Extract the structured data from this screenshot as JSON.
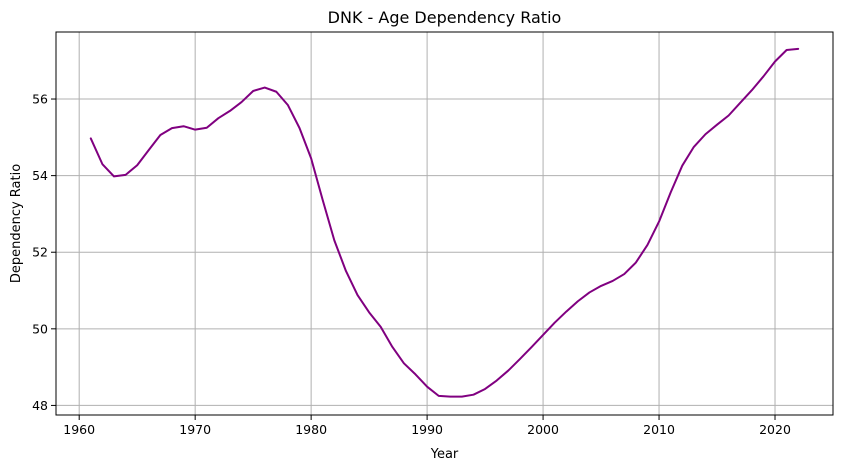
{
  "chart_data": {
    "type": "line",
    "title": "DNK - Age Dependency Ratio",
    "xlabel": "Year",
    "ylabel": "Dependency Ratio",
    "xlim": [
      1958,
      2025
    ],
    "ylim": [
      47.75,
      57.75
    ],
    "xticks": [
      1960,
      1970,
      1980,
      1990,
      2000,
      2010,
      2020
    ],
    "yticks": [
      48,
      50,
      52,
      54,
      56
    ],
    "grid": true,
    "line_color": "#800080",
    "series": [
      {
        "x": [
          1961,
          1962,
          1963,
          1964,
          1965,
          1966,
          1967,
          1968,
          1969,
          1970,
          1971,
          1972,
          1973,
          1974,
          1975,
          1976,
          1977,
          1978,
          1979,
          1980,
          1981,
          1982,
          1983,
          1984,
          1985,
          1986,
          1987,
          1988,
          1989,
          1990,
          1991,
          1992,
          1993,
          1994,
          1995,
          1996,
          1997,
          1998,
          1999,
          2000,
          2001,
          2002,
          2003,
          2004,
          2005,
          2006,
          2007,
          2008,
          2009,
          2010,
          2011,
          2012,
          2013,
          2014,
          2015,
          2016,
          2017,
          2018,
          2019,
          2020,
          2021,
          2022
        ],
        "values": [
          54.97,
          54.3,
          53.98,
          54.02,
          54.27,
          54.67,
          55.06,
          55.24,
          55.29,
          55.2,
          55.25,
          55.5,
          55.69,
          55.92,
          56.21,
          56.3,
          56.19,
          55.84,
          55.24,
          54.45,
          53.36,
          52.31,
          51.51,
          50.88,
          50.43,
          50.05,
          49.53,
          49.1,
          48.81,
          48.49,
          48.25,
          48.23,
          48.23,
          48.28,
          48.43,
          48.65,
          48.91,
          49.21,
          49.52,
          49.84,
          50.16,
          50.45,
          50.72,
          50.95,
          51.12,
          51.25,
          51.43,
          51.73,
          52.19,
          52.8,
          53.56,
          54.26,
          54.75,
          55.08,
          55.33,
          55.57,
          55.9,
          56.23,
          56.59,
          56.98,
          57.28,
          57.31
        ]
      }
    ]
  }
}
